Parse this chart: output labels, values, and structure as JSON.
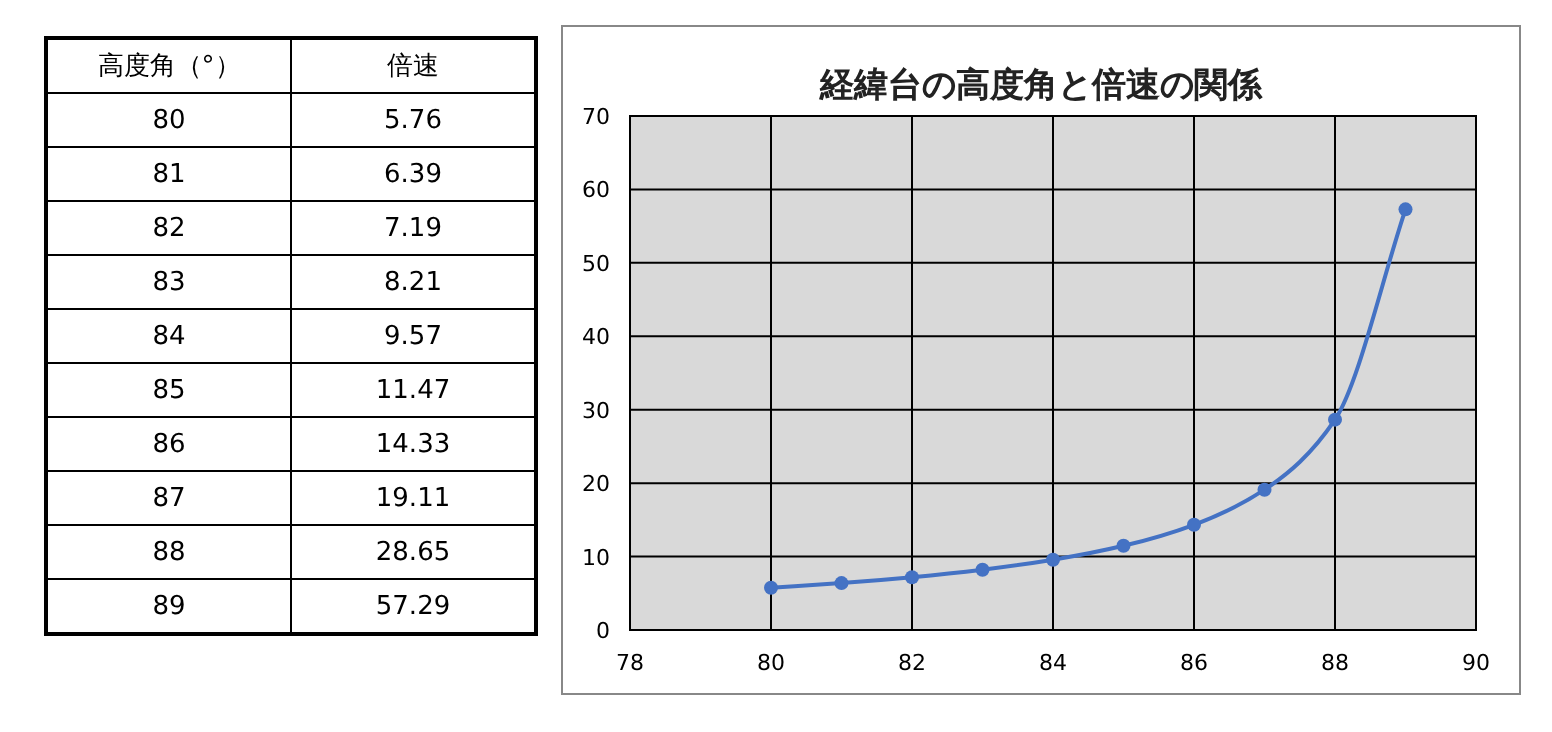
{
  "chart_data": [
    {
      "type": "heatmap",
      "ylabel": "高度角（°）",
      "categories": [
        "倍速"
      ],
      "y_categories": [
        "80",
        "81",
        "82",
        "83",
        "84",
        "85",
        "86",
        "87",
        "88",
        "89"
      ],
      "cells": [
        [
          5.76
        ],
        [
          6.39
        ],
        [
          7.19
        ],
        [
          8.21
        ],
        [
          9.57
        ],
        [
          11.47
        ],
        [
          14.33
        ],
        [
          19.11
        ],
        [
          28.65
        ],
        [
          57.29
        ]
      ],
      "data_labels": true
    },
    {
      "type": "line",
      "title": "経緯台の高度角と倍速の関係",
      "x": [
        80,
        81,
        82,
        83,
        84,
        85,
        86,
        87,
        88,
        89
      ],
      "series": [
        {
          "color": "#4472c4",
          "values": [
            5.76,
            6.39,
            7.19,
            8.21,
            9.57,
            11.47,
            14.33,
            19.11,
            28.65,
            57.29
          ]
        }
      ],
      "xlim": [
        78,
        90
      ],
      "xticks": [
        78,
        80,
        82,
        84,
        86,
        88,
        90
      ],
      "ylim": [
        0,
        70
      ],
      "yticks": [
        0,
        10,
        20,
        30,
        40,
        50,
        60,
        70
      ],
      "grid": true,
      "marker": "circle",
      "line_style": "solid"
    }
  ]
}
